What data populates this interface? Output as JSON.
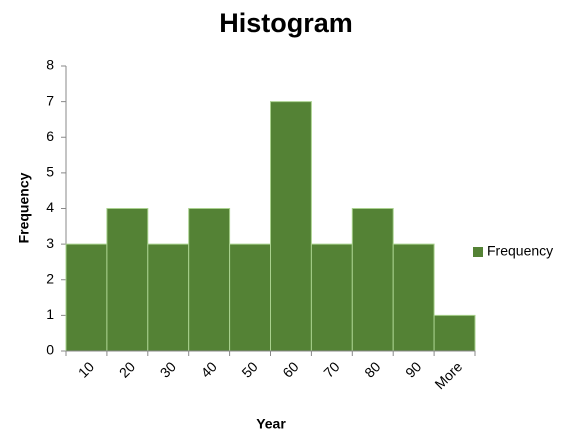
{
  "chart_data": {
    "type": "bar",
    "title": "Histogram",
    "x_label": "Year",
    "y_label": "Frequency",
    "categories": [
      "10",
      "20",
      "30",
      "40",
      "50",
      "60",
      "70",
      "80",
      "90",
      "More"
    ],
    "series": [
      {
        "name": "Frequency",
        "color": "#548235",
        "values": [
          3,
          4,
          3,
          4,
          3,
          7,
          3,
          4,
          3,
          1
        ]
      }
    ],
    "ylim": [
      0,
      8
    ],
    "yticks": [
      0,
      1,
      2,
      3,
      4,
      5,
      6,
      7,
      8
    ],
    "legend": "right"
  }
}
